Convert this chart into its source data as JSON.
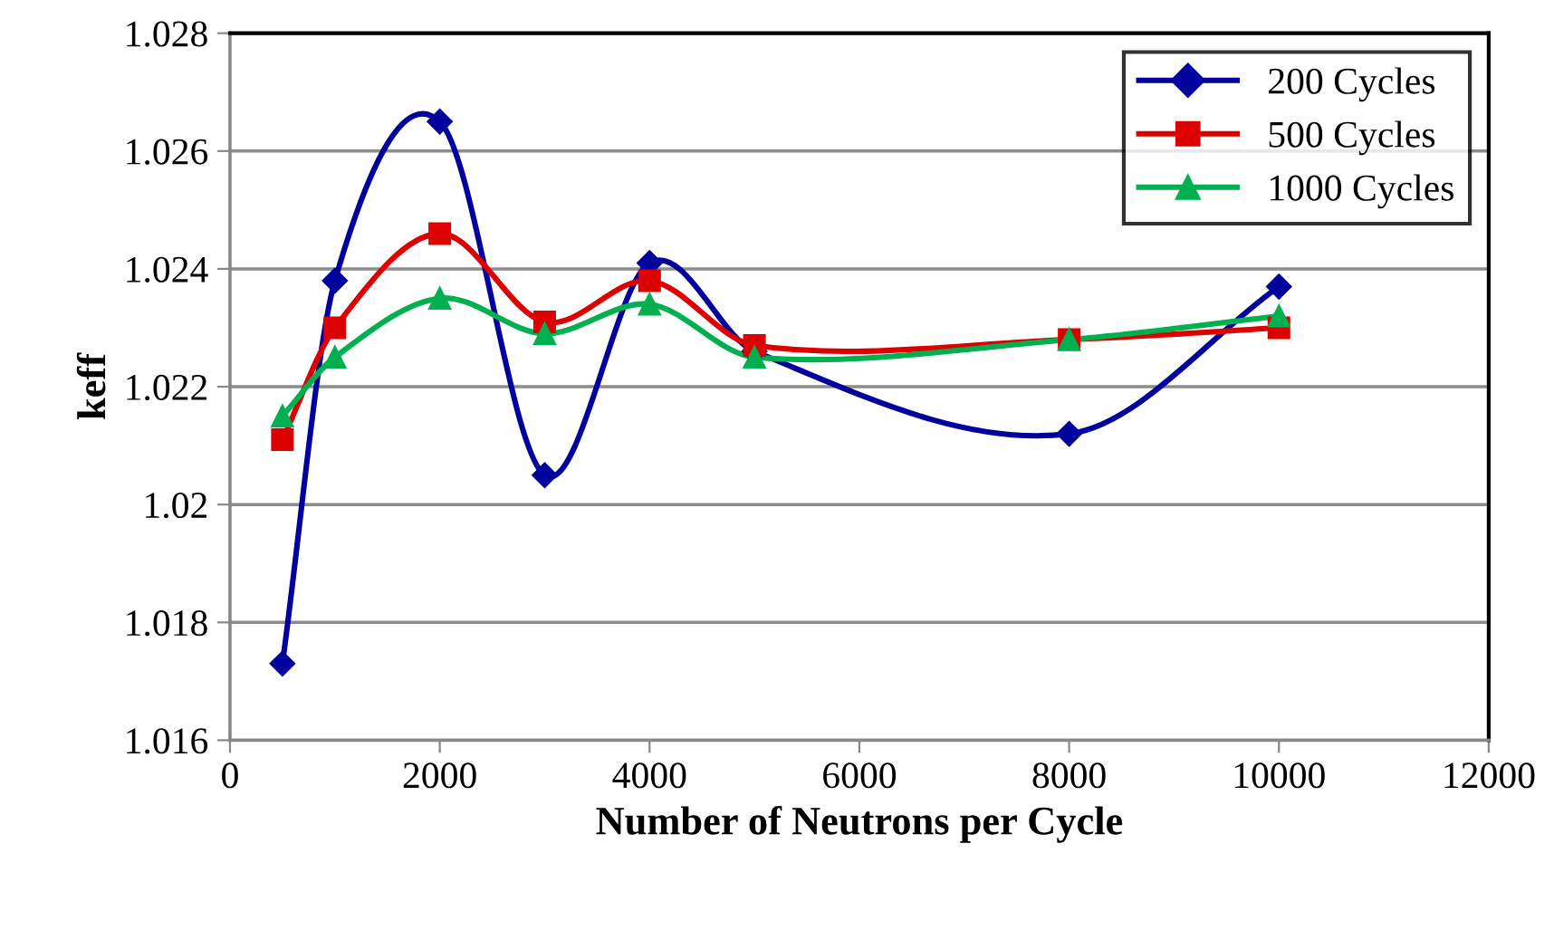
{
  "chart_data": {
    "type": "line",
    "xlabel": "Number of Neutrons per Cycle",
    "ylabel": "keff",
    "x": [
      500,
      1000,
      2000,
      3000,
      4000,
      5000,
      8000,
      10000
    ],
    "series": [
      {
        "name": "200 Cycles",
        "color": "#00009c",
        "marker": "diamond",
        "values": [
          1.0173,
          1.0238,
          1.0265,
          1.0205,
          1.0241,
          1.0226,
          1.0212,
          1.0237
        ]
      },
      {
        "name": "500 Cycles",
        "color": "#dd0000",
        "marker": "square",
        "values": [
          1.0211,
          1.023,
          1.0246,
          1.0231,
          1.0238,
          1.0227,
          1.0228,
          1.023
        ]
      },
      {
        "name": "1000 Cycles",
        "color": "#00b050",
        "marker": "triangle",
        "values": [
          1.0215,
          1.0225,
          1.0235,
          1.0229,
          1.0234,
          1.0225,
          1.0228,
          1.0232
        ]
      }
    ],
    "xlim": [
      0,
      12000
    ],
    "xticks": [
      0,
      2000,
      4000,
      6000,
      8000,
      10000,
      12000
    ],
    "ylim": [
      1.016,
      1.028
    ],
    "yticks": [
      {
        "value": 1.016,
        "label": "1.016"
      },
      {
        "value": 1.018,
        "label": "1.018"
      },
      {
        "value": 1.02,
        "label": "1.02"
      },
      {
        "value": 1.022,
        "label": "1.022"
      },
      {
        "value": 1.024,
        "label": "1.024"
      },
      {
        "value": 1.026,
        "label": "1.026"
      },
      {
        "value": 1.028,
        "label": "1.028"
      }
    ],
    "grid": "y",
    "legend": "top right",
    "line_style": "solid"
  }
}
